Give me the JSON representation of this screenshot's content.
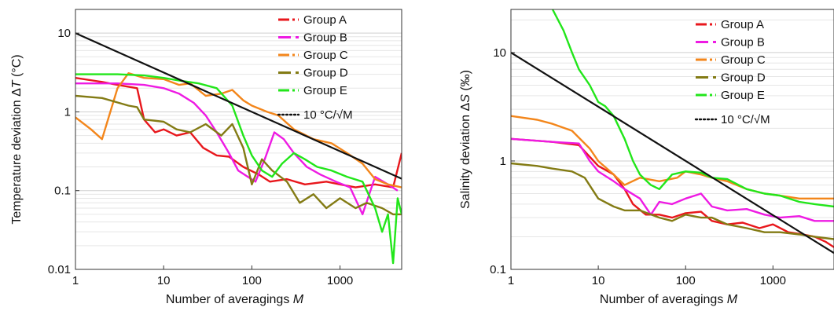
{
  "chart_data": [
    {
      "type": "line",
      "xlabel_text": "Number of averagings ",
      "xlabel_var": "M",
      "ylabel_text": "Temperature deviation Δ",
      "ylabel_var": "T",
      "ylabel_unit": " (°C)",
      "xscale": "log",
      "yscale": "log",
      "xlim": [
        1,
        5000
      ],
      "ylim": [
        0.01,
        20
      ],
      "x_ticks": [
        1,
        10,
        100,
        1000
      ],
      "x_tick_labels": [
        "1",
        "10",
        "100",
        "1000"
      ],
      "y_ticks": [
        0.01,
        0.1,
        1,
        10
      ],
      "y_tick_labels": [
        "0.01",
        "0.1",
        "1",
        "10"
      ],
      "grid": "horizontal minor",
      "legend_position": "top-right",
      "series": [
        {
          "name": "Group A",
          "color": "#e8171c",
          "dash": "dashdot",
          "x": [
            1,
            2,
            3,
            5,
            6,
            8,
            10,
            14,
            20,
            28,
            40,
            55,
            80,
            120,
            160,
            250,
            400,
            700,
            1000,
            1500,
            2500,
            4000,
            5000
          ],
          "y": [
            2.7,
            2.4,
            2.2,
            2.0,
            0.8,
            0.55,
            0.6,
            0.5,
            0.55,
            0.35,
            0.28,
            0.27,
            0.2,
            0.16,
            0.13,
            0.14,
            0.12,
            0.13,
            0.12,
            0.11,
            0.12,
            0.11,
            0.3
          ]
        },
        {
          "name": "Group B",
          "color": "#ee1be3",
          "dash": "longdash",
          "x": [
            1,
            3,
            6,
            10,
            15,
            22,
            30,
            40,
            55,
            70,
            90,
            110,
            140,
            180,
            230,
            300,
            420,
            600,
            900,
            1300,
            1800,
            2500,
            3500,
            4500
          ],
          "y": [
            2.3,
            2.3,
            2.2,
            2.0,
            1.7,
            1.3,
            0.9,
            0.55,
            0.3,
            0.18,
            0.15,
            0.13,
            0.25,
            0.55,
            0.45,
            0.3,
            0.2,
            0.16,
            0.13,
            0.11,
            0.05,
            0.15,
            0.12,
            0.1
          ]
        },
        {
          "name": "Group C",
          "color": "#f3861b",
          "dash": "dashdot",
          "x": [
            1,
            1.5,
            2,
            3,
            4,
            6,
            10,
            15,
            20,
            30,
            45,
            60,
            80,
            100,
            150,
            200,
            300,
            500,
            800,
            1200,
            1800,
            2500,
            3500,
            5000
          ],
          "y": [
            0.85,
            0.6,
            0.45,
            2.0,
            3.1,
            2.7,
            2.6,
            2.2,
            2.3,
            1.6,
            1.7,
            1.9,
            1.4,
            1.2,
            1.0,
            0.9,
            0.6,
            0.45,
            0.4,
            0.3,
            0.22,
            0.14,
            0.12,
            0.11
          ]
        },
        {
          "name": "Group D",
          "color": "#837b14",
          "dash": "longdash",
          "x": [
            1,
            2,
            4,
            5,
            6,
            10,
            14,
            20,
            30,
            45,
            60,
            80,
            100,
            130,
            170,
            250,
            350,
            500,
            700,
            1000,
            1500,
            2000,
            3000,
            4000,
            5000
          ],
          "y": [
            1.6,
            1.5,
            1.2,
            1.15,
            0.8,
            0.75,
            0.6,
            0.55,
            0.7,
            0.5,
            0.7,
            0.35,
            0.12,
            0.25,
            0.18,
            0.13,
            0.07,
            0.09,
            0.06,
            0.08,
            0.06,
            0.07,
            0.06,
            0.05,
            0.05
          ]
        },
        {
          "name": "Group E",
          "color": "#22e61a",
          "dash": "dashdot",
          "x": [
            1,
            3,
            6,
            10,
            15,
            25,
            40,
            60,
            80,
            100,
            130,
            170,
            220,
            300,
            400,
            550,
            800,
            1200,
            1800,
            2500,
            3000,
            3500,
            4000,
            4500,
            5000
          ],
          "y": [
            3.0,
            3.0,
            2.9,
            2.7,
            2.5,
            2.3,
            2.0,
            1.2,
            0.5,
            0.28,
            0.18,
            0.15,
            0.22,
            0.3,
            0.25,
            0.2,
            0.18,
            0.15,
            0.13,
            0.06,
            0.03,
            0.05,
            0.012,
            0.08,
            0.05
          ]
        },
        {
          "name": "10 °C/√M",
          "color": "#111111",
          "dash": "dotted",
          "x": [
            1,
            5000
          ],
          "y": [
            10,
            0.1414
          ]
        }
      ]
    },
    {
      "type": "line",
      "xlabel_text": "Number of averagings ",
      "xlabel_var": "M",
      "ylabel_text": "Salinity deviation Δ",
      "ylabel_var": "S",
      "ylabel_unit": " (‰)",
      "xscale": "log",
      "yscale": "log",
      "xlim": [
        1,
        5000
      ],
      "ylim": [
        0.1,
        25
      ],
      "x_ticks": [
        1,
        10,
        100,
        1000
      ],
      "x_tick_labels": [
        "1",
        "10",
        "100",
        "1000"
      ],
      "y_ticks": [
        0.1,
        1,
        10
      ],
      "y_tick_labels": [
        "0.1",
        "1",
        "10"
      ],
      "grid": "horizontal minor",
      "legend_position": "top-right",
      "series": [
        {
          "name": "Group A",
          "color": "#e8171c",
          "dash": "dashdot",
          "x": [
            1,
            3,
            6,
            10,
            15,
            20,
            25,
            35,
            50,
            70,
            100,
            150,
            200,
            300,
            450,
            700,
            1000,
            1500,
            2200,
            3000,
            4000,
            5000
          ],
          "y": [
            1.6,
            1.5,
            1.4,
            0.9,
            0.75,
            0.55,
            0.4,
            0.32,
            0.32,
            0.3,
            0.33,
            0.34,
            0.28,
            0.26,
            0.27,
            0.24,
            0.26,
            0.22,
            0.21,
            0.2,
            0.18,
            0.16
          ]
        },
        {
          "name": "Group B",
          "color": "#ee1be3",
          "dash": "longdash",
          "x": [
            1,
            3,
            6,
            8,
            10,
            15,
            20,
            30,
            40,
            50,
            70,
            100,
            150,
            200,
            300,
            500,
            800,
            1200,
            2000,
            3000,
            5000
          ],
          "y": [
            1.6,
            1.5,
            1.45,
            1.0,
            0.8,
            0.65,
            0.55,
            0.45,
            0.32,
            0.42,
            0.4,
            0.45,
            0.5,
            0.38,
            0.35,
            0.36,
            0.32,
            0.3,
            0.31,
            0.28,
            0.28
          ]
        },
        {
          "name": "Group C",
          "color": "#f3861b",
          "dash": "dashdot",
          "x": [
            1,
            2,
            3,
            5,
            8,
            10,
            15,
            20,
            30,
            50,
            80,
            100,
            150,
            200,
            300,
            500,
            800,
            1200,
            2000,
            3000,
            5000
          ],
          "y": [
            2.6,
            2.4,
            2.2,
            1.9,
            1.3,
            1.0,
            0.75,
            0.6,
            0.7,
            0.65,
            0.7,
            0.8,
            0.75,
            0.7,
            0.65,
            0.55,
            0.5,
            0.48,
            0.45,
            0.45,
            0.45
          ]
        },
        {
          "name": "Group D",
          "color": "#837b14",
          "dash": "longdash",
          "x": [
            1,
            2,
            3,
            5,
            7,
            10,
            15,
            20,
            30,
            50,
            70,
            100,
            150,
            200,
            300,
            500,
            800,
            1200,
            2000,
            3000,
            5000
          ],
          "y": [
            0.95,
            0.9,
            0.85,
            0.8,
            0.7,
            0.45,
            0.38,
            0.35,
            0.35,
            0.3,
            0.28,
            0.32,
            0.3,
            0.3,
            0.26,
            0.24,
            0.22,
            0.22,
            0.21,
            0.2,
            0.19
          ]
        },
        {
          "name": "Group E",
          "color": "#22e61a",
          "dash": "dashdot",
          "x": [
            3,
            4,
            5,
            6,
            8,
            10,
            12,
            15,
            20,
            25,
            30,
            40,
            50,
            70,
            100,
            150,
            200,
            300,
            500,
            800,
            1200,
            2000,
            3000,
            5000
          ],
          "y": [
            25,
            16,
            10,
            7,
            5,
            3.5,
            3.2,
            2.6,
            1.6,
            1.0,
            0.75,
            0.6,
            0.55,
            0.75,
            0.8,
            0.78,
            0.7,
            0.68,
            0.55,
            0.5,
            0.48,
            0.42,
            0.4,
            0.38
          ]
        },
        {
          "name": "10 °C/√M",
          "color": "#111111",
          "dash": "dotted",
          "x": [
            1,
            5000
          ],
          "y": [
            10,
            0.1414
          ]
        }
      ]
    }
  ]
}
